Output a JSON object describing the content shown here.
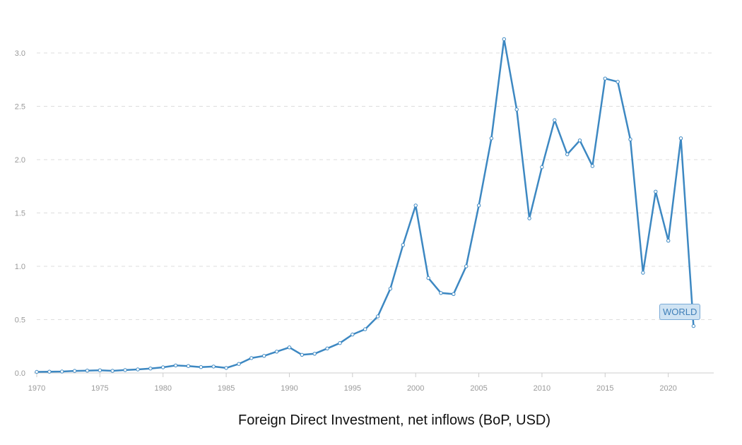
{
  "caption": "Foreign Direct Investment, net inflows (BoP, USD)",
  "colors": {
    "series": "#3d88c2",
    "grid": "#dddddd",
    "tick": "#9a9a9a"
  },
  "chart_data": {
    "type": "line",
    "title": "Foreign Direct Investment, net inflows (BoP, USD)",
    "xlabel": "",
    "ylabel": "",
    "xlim": [
      1970,
      2023
    ],
    "ylim": [
      0,
      3.0
    ],
    "x_ticks": [
      "1970",
      "1975",
      "1980",
      "1985",
      "1990",
      "1995",
      "2000",
      "2005",
      "2010",
      "2015",
      "2020"
    ],
    "y_ticks": [
      "0.0",
      "0.5",
      "1.0",
      "1.5",
      "2.0",
      "2.5",
      "3.0"
    ],
    "grid": true,
    "series": [
      {
        "name": "WORLD",
        "x": [
          1970,
          1971,
          1972,
          1973,
          1974,
          1975,
          1976,
          1977,
          1978,
          1979,
          1980,
          1981,
          1982,
          1983,
          1984,
          1985,
          1986,
          1987,
          1988,
          1989,
          1990,
          1991,
          1992,
          1993,
          1994,
          1995,
          1996,
          1997,
          1998,
          1999,
          2000,
          2001,
          2002,
          2003,
          2004,
          2005,
          2006,
          2007,
          2008,
          2009,
          2010,
          2011,
          2012,
          2013,
          2014,
          2015,
          2016,
          2017,
          2018,
          2019,
          2020,
          2021,
          2022
        ],
        "values": [
          0.01,
          0.012,
          0.013,
          0.019,
          0.022,
          0.025,
          0.02,
          0.027,
          0.033,
          0.042,
          0.053,
          0.07,
          0.065,
          0.055,
          0.06,
          0.047,
          0.085,
          0.14,
          0.16,
          0.2,
          0.24,
          0.17,
          0.18,
          0.23,
          0.28,
          0.36,
          0.41,
          0.53,
          0.79,
          1.2,
          1.57,
          0.89,
          0.75,
          0.74,
          1.0,
          1.57,
          2.2,
          3.13,
          2.47,
          1.45,
          1.93,
          2.37,
          2.05,
          2.18,
          1.94,
          2.76,
          2.73,
          2.19,
          0.94,
          1.7,
          1.24,
          2.2,
          0.44
        ]
      }
    ]
  }
}
